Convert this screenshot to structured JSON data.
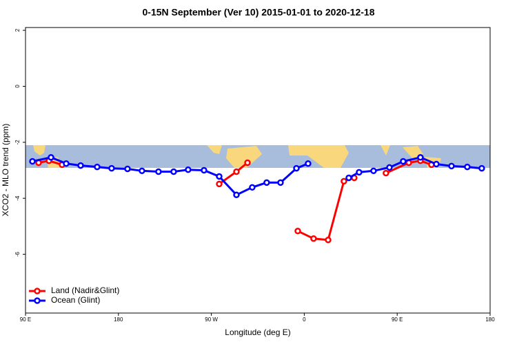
{
  "chart_data": {
    "type": "line",
    "title": "0-15N September (Ver 10)   2015-01-01 to 2020-12-18",
    "x_label": "Longitude (deg E)",
    "y_label": "XCO2 - MLO trend (ppm)",
    "xlim": [
      90,
      540
    ],
    "xticks": [
      {
        "value": 90,
        "label": "90 E"
      },
      180,
      {
        "value": 270,
        "label": "90 W"
      },
      {
        "value": 360,
        "label": "0"
      },
      {
        "value": 450,
        "label": "90 E"
      },
      {
        "value": 540,
        "label": "180"
      }
    ],
    "ylim": [
      -8.1,
      2.1
    ],
    "yticks": [
      2,
      0,
      -2,
      -4,
      -6
    ],
    "legend": "bottom-left",
    "series": [
      {
        "name": "Land (Nadir&Glint)",
        "color": "#ff0000",
        "x": [
          102.7,
          112.7,
          125.4,
          null,
          277.6,
          294.3,
          305.0,
          null,
          353.7,
          369.0,
          383.1,
          398.4,
          408.4,
          null,
          439.1,
          461.2,
          472.5,
          483.2
        ],
        "values": [
          -2.73,
          -2.66,
          -2.8,
          null,
          -3.49,
          -3.05,
          -2.73,
          null,
          -5.17,
          -5.44,
          -5.49,
          -3.39,
          -3.27,
          null,
          -3.1,
          -2.73,
          -2.66,
          -2.8
        ]
      },
      {
        "name": "Ocean (Glint)",
        "color": "#0000ff",
        "x": [
          96.7,
          114.7,
          129.4,
          143.4,
          159.4,
          173.4,
          188.8,
          202.8,
          218.8,
          233.5,
          247.5,
          262.9,
          277.6,
          294.3,
          309.6,
          323.6,
          337.0,
          352.4,
          363.7,
          null,
          403.1,
          413.1,
          427.1,
          442.5,
          455.8,
          472.5,
          487.9,
          502.6,
          517.9,
          531.9
        ],
        "values": [
          -2.68,
          -2.54,
          -2.76,
          -2.83,
          -2.88,
          -2.93,
          -2.95,
          -3.02,
          -3.05,
          -3.05,
          -2.98,
          -3.0,
          -3.22,
          -3.88,
          -3.61,
          -3.44,
          -3.44,
          -2.93,
          -2.76,
          null,
          -3.27,
          -3.07,
          -3.02,
          -2.9,
          -2.68,
          -2.54,
          -2.78,
          -2.85,
          -2.88,
          -2.93
        ]
      }
    ]
  }
}
